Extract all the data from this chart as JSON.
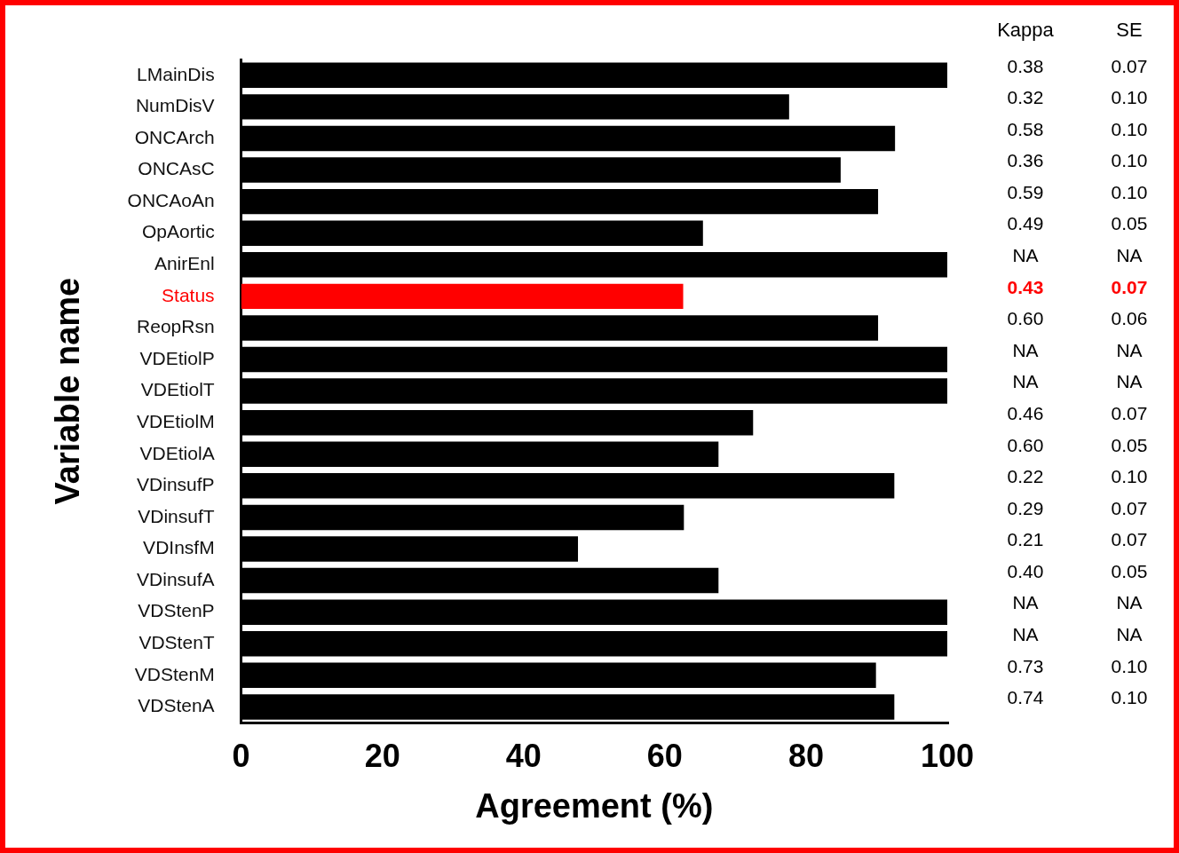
{
  "chart_data": {
    "type": "bar",
    "orientation": "horizontal",
    "xlabel": "Agreement (%)",
    "ylabel": "Variable name",
    "categories": [
      "LMainDis",
      "NumDisV",
      "ONCArch",
      "ONCAsC",
      "ONCAoAn",
      "OpAortic",
      "AnirEnl",
      "Status",
      "ReopRsn",
      "VDEtiolP",
      "VDEtiolT",
      "VDEtiolM",
      "VDEtiolA",
      "VDinsufP",
      "VDinsufT",
      "VDInsfM",
      "VDinsufA",
      "VDStenP",
      "VDStenT",
      "VDStenM",
      "VDStenA"
    ],
    "values": [
      100,
      77.6,
      92.6,
      84.9,
      90.2,
      65.4,
      100,
      62.6,
      90.2,
      100,
      100,
      72.5,
      67.6,
      92.5,
      62.7,
      47.7,
      67.6,
      100,
      100,
      89.9,
      92.5
    ],
    "colors": [
      "#000000",
      "#000000",
      "#000000",
      "#000000",
      "#000000",
      "#000000",
      "#000000",
      "#ff0000",
      "#000000",
      "#000000",
      "#000000",
      "#000000",
      "#000000",
      "#000000",
      "#000000",
      "#000000",
      "#000000",
      "#000000",
      "#000000",
      "#000000",
      "#000000"
    ],
    "xlim": [
      0,
      100
    ],
    "xticks": [
      0,
      20,
      40,
      60,
      80,
      100
    ],
    "grid": false,
    "legend": false,
    "annotations": [
      "Kappa",
      "SE",
      "0.38",
      "0.07",
      "0.32",
      "0.10",
      "0.58",
      "0.10",
      "0.36",
      "0.10",
      "0.59",
      "0.10",
      "0.49",
      "0.05",
      "NA",
      "NA",
      "0.43",
      "0.07",
      "0.60",
      "0.06",
      "NA",
      "NA",
      "NA",
      "NA",
      "0.46",
      "0.07",
      "0.60",
      "0.05",
      "0.22",
      "0.10",
      "0.29",
      "0.07",
      "0.21",
      "0.07",
      "0.40",
      "0.05",
      "NA",
      "NA",
      "NA",
      "NA",
      "0.73",
      "0.10",
      "0.74",
      "0.10"
    ]
  }
}
